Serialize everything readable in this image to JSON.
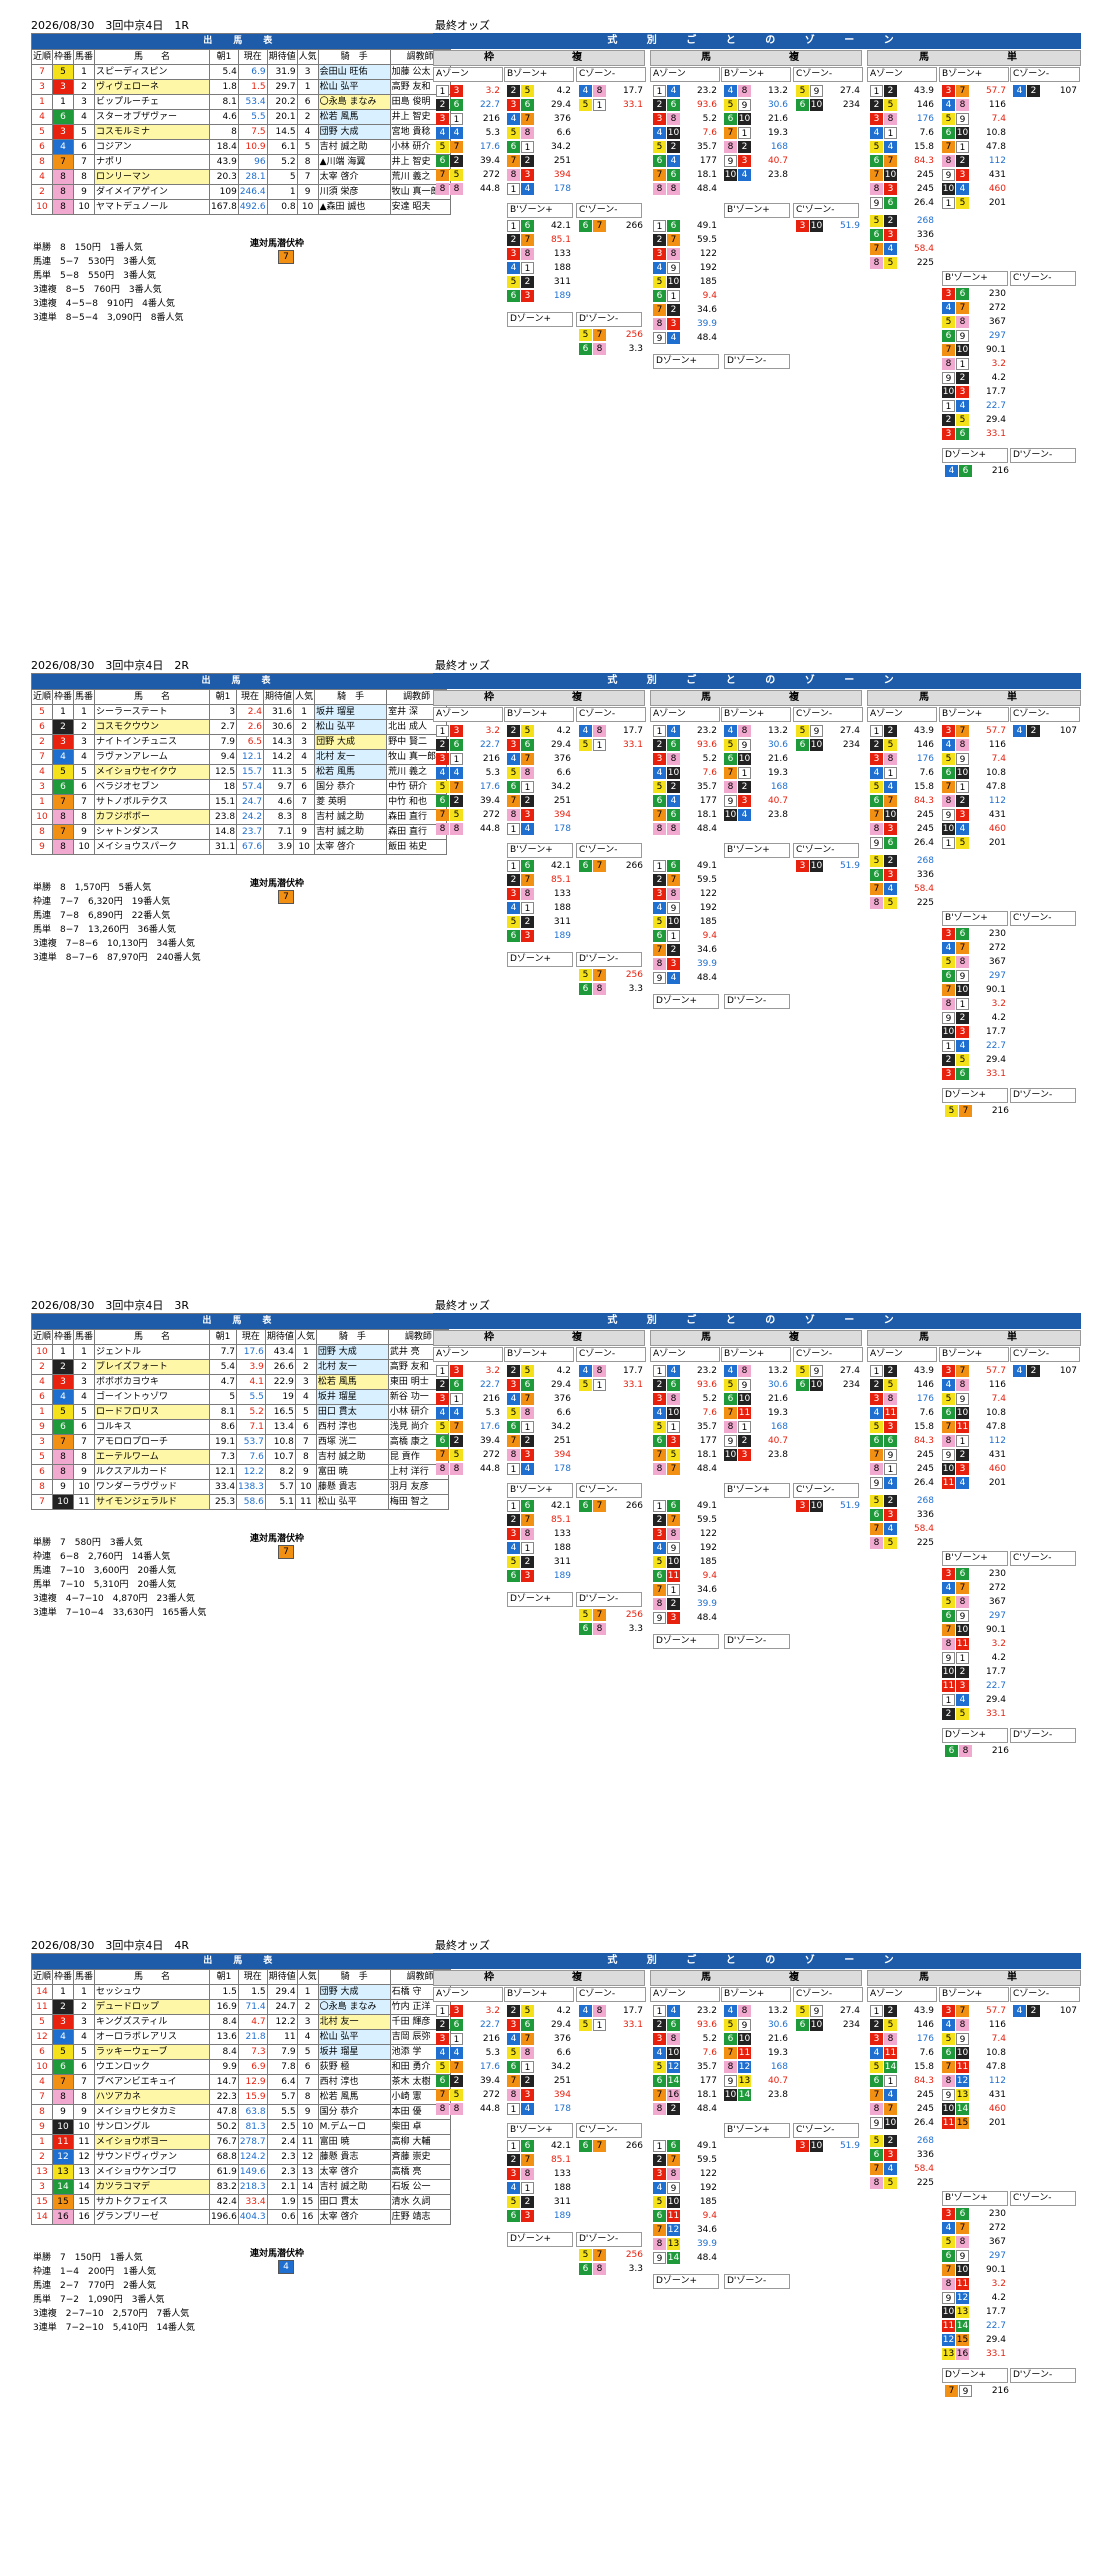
{
  "title_suffix_odds": "最終オッズ",
  "table_title": "出　馬　表",
  "zone_title": "式 別 ご と の ゾ ー ン",
  "groups": {
    "waku": "枠　　　複",
    "umaren": "馬　　　複",
    "tan": "馬　　　単"
  },
  "zones": {
    "a": "Aゾーン",
    "b": "Bゾーン+",
    "c": "Cゾーン-",
    "b_only": "B'ゾーン+",
    "c_only": "C'ゾーン-",
    "d": "Dゾーン+",
    "dm": "D'ゾーン-"
  },
  "cols": {
    "waku": "枠番",
    "uma": "馬番",
    "name": "馬　　名",
    "odds": "単勝オッズ",
    "asa": "朝1",
    "now": "現在",
    "kitai": "期待値",
    "ninki": "人気",
    "jockey": "騎　手",
    "trainer": "調教師",
    "kinjun": "近順"
  },
  "pick_label": "連対馬潜伏枠",
  "races": [
    {
      "header": "2026/08/30　3回中京4日　1R",
      "entries": [
        {
          "k": "7",
          "w": "5",
          "u": "1",
          "n": "スピーディスピン",
          "a": "5.4",
          "c": "6.9",
          "x": "31.9",
          "p": "3",
          "j": "会田山 旺佑",
          "t": "加藤 公太"
        },
        {
          "k": "3",
          "w": "3",
          "u": "2",
          "n": "ヴィヴェローネ",
          "a": "1.8",
          "c": "1.5",
          "x": "29.7",
          "p": "1",
          "j": "松山 弘平",
          "t": "高野 友和"
        },
        {
          "k": "1",
          "w": "1",
          "u": "3",
          "n": "ビップルーチェ",
          "a": "8.1",
          "c": "53.4",
          "x": "20.2",
          "p": "6",
          "j": "〇永島 まなみ",
          "t": "田島 俊明"
        },
        {
          "k": "4",
          "w": "6",
          "u": "4",
          "n": "スターオブザヴァー",
          "a": "4.6",
          "c": "5.5",
          "x": "20.1",
          "p": "2",
          "j": "松若 風馬",
          "t": "井上 智史"
        },
        {
          "k": "5",
          "w": "3",
          "u": "5",
          "n": "コスモルミナ",
          "a": "8",
          "c": "7.5",
          "x": "14.5",
          "p": "4",
          "j": "団野 大成",
          "t": "宮地 貴稔"
        },
        {
          "k": "6",
          "w": "4",
          "u": "6",
          "n": "コジアン",
          "a": "18.4",
          "c": "10.9",
          "x": "6.1",
          "p": "5",
          "j": "吉村 誠之助",
          "t": "小林 研介"
        },
        {
          "k": "8",
          "w": "7",
          "u": "7",
          "n": "ナポリ",
          "a": "43.9",
          "c": "96",
          "x": "5.2",
          "p": "8",
          "j": "▲川端 海翼",
          "t": "井上 智史"
        },
        {
          "k": "4",
          "w": "8",
          "u": "8",
          "n": "ロンリーマン",
          "a": "20.3",
          "c": "28.1",
          "x": "5",
          "p": "7",
          "j": "太宰 啓介",
          "t": "荒川 義之"
        },
        {
          "k": "2",
          "w": "8",
          "u": "9",
          "n": "ダイメイアゲイン",
          "a": "109",
          "c": "246.4",
          "x": "1",
          "p": "9",
          "j": "川須 栄彦",
          "t": "牧山 真一郎"
        },
        {
          "k": "10",
          "w": "8",
          "u": "10",
          "n": "ヤマトデュノール",
          "a": "167.8",
          "c": "492.6",
          "x": "0.8",
          "p": "10",
          "j": "▲森田 誠也",
          "t": "安達 昭夫"
        }
      ],
      "results": [
        "単勝　8　150円　1番人気",
        "馬連　5−7　530円　3番人気",
        "馬単　5−8　550円　3番人気",
        "3連複　8−5　760円　3番人気",
        "3連複　4−5−8　910円　4番人気",
        "3連単　8−5−4　3,090円　8番人気"
      ],
      "pick": "7"
    },
    {
      "header": "2026/08/30　3回中京4日　2R",
      "entries": [
        {
          "k": "5",
          "w": "1",
          "u": "1",
          "n": "シーラーステート",
          "a": "3",
          "c": "2.4",
          "x": "31.6",
          "p": "1",
          "j": "坂井 瑠星",
          "t": "室井 深"
        },
        {
          "k": "6",
          "w": "2",
          "u": "2",
          "n": "コスモクウウン",
          "a": "2.7",
          "c": "2.6",
          "x": "30.6",
          "p": "2",
          "j": "松山 弘平",
          "t": "北出 成人"
        },
        {
          "k": "2",
          "w": "3",
          "u": "3",
          "n": "ナイトインチュニス",
          "a": "7.9",
          "c": "6.5",
          "x": "14.3",
          "p": "3",
          "j": "団野 大成",
          "t": "野中 賢二"
        },
        {
          "k": "7",
          "w": "4",
          "u": "4",
          "n": "ラヴァンアレーム",
          "a": "9.4",
          "c": "12.1",
          "x": "14.2",
          "p": "4",
          "j": "北村 友一",
          "t": "牧山 真一郎"
        },
        {
          "k": "4",
          "w": "5",
          "u": "5",
          "n": "メイショウセイクウ",
          "a": "12.5",
          "c": "15.7",
          "x": "11.3",
          "p": "5",
          "j": "松若 風馬",
          "t": "荒川 義之"
        },
        {
          "k": "3",
          "w": "6",
          "u": "6",
          "n": "ベラジオセブン",
          "a": "18",
          "c": "57.4",
          "x": "9.7",
          "p": "6",
          "j": "国分 恭介",
          "t": "中竹 研介"
        },
        {
          "k": "1",
          "w": "7",
          "u": "7",
          "n": "サトノボルテクス",
          "a": "15.1",
          "c": "24.7",
          "x": "4.6",
          "p": "7",
          "j": "菱 英明",
          "t": "中竹 和也"
        },
        {
          "k": "10",
          "w": "8",
          "u": "8",
          "n": "カフジボボー",
          "a": "23.8",
          "c": "24.2",
          "x": "8.3",
          "p": "8",
          "j": "吉村 誠之助",
          "t": "森田 直行"
        },
        {
          "k": "8",
          "w": "7",
          "u": "9",
          "n": "シャトンダンス",
          "a": "14.8",
          "c": "23.7",
          "x": "7.1",
          "p": "9",
          "j": "吉村 誠之助",
          "t": "森田 直行"
        },
        {
          "k": "9",
          "w": "8",
          "u": "10",
          "n": "メイショウスパーク",
          "a": "31.1",
          "c": "67.6",
          "x": "3.9",
          "p": "10",
          "j": "太宰 啓介",
          "t": "飯田 祐史"
        }
      ],
      "results": [
        "単勝　8　1,570円　5番人気",
        "枠連　7−7　6,320円　19番人気",
        "馬連　7−8　6,890円　22番人気",
        "馬単　8−7　13,260円　36番人気",
        "3連複　7−8−6　10,130円　34番人気",
        "3連単　8−7−6　87,970円　240番人気"
      ],
      "pick": "7"
    },
    {
      "header": "2026/08/30　3回中京4日　3R",
      "entries": [
        {
          "k": "10",
          "w": "1",
          "u": "1",
          "n": "ジェントル",
          "a": "7.7",
          "c": "17.6",
          "x": "43.4",
          "p": "1",
          "j": "団野 大成",
          "t": "武井 亮"
        },
        {
          "k": "2",
          "w": "2",
          "u": "2",
          "n": "ブレイズフォート",
          "a": "5.4",
          "c": "3.9",
          "x": "26.6",
          "p": "2",
          "j": "北村 友一",
          "t": "高野 友和"
        },
        {
          "k": "4",
          "w": "3",
          "u": "3",
          "n": "ボボボカヨウキ",
          "a": "4.7",
          "c": "4.1",
          "x": "22.9",
          "p": "3",
          "j": "松若 風馬",
          "t": "東田 明士"
        },
        {
          "k": "6",
          "w": "4",
          "u": "4",
          "n": "ゴーイントゥゾワ",
          "a": "5",
          "c": "5.5",
          "x": "19",
          "p": "4",
          "j": "坂井 瑠星",
          "t": "新谷 功一"
        },
        {
          "k": "1",
          "w": "5",
          "u": "5",
          "n": "ロードフロリス",
          "a": "8.1",
          "c": "5.2",
          "x": "16.5",
          "p": "5",
          "j": "田口 貫太",
          "t": "小林 研介"
        },
        {
          "k": "9",
          "w": "6",
          "u": "6",
          "n": "コルキス",
          "a": "8.6",
          "c": "7.1",
          "x": "13.4",
          "p": "6",
          "j": "西村 淳也",
          "t": "浅見 尚介"
        },
        {
          "k": "3",
          "w": "7",
          "u": "7",
          "n": "アモロロプローチ",
          "a": "19.1",
          "c": "53.7",
          "x": "10.8",
          "p": "7",
          "j": "西塚 洸二",
          "t": "高橋 康之"
        },
        {
          "k": "5",
          "w": "8",
          "u": "8",
          "n": "エーテルワーム",
          "a": "7.3",
          "c": "7.6",
          "x": "10.7",
          "p": "8",
          "j": "吉村 誠之助",
          "t": "昆 貢作"
        },
        {
          "k": "6",
          "w": "8",
          "u": "9",
          "n": "ルクスアルカード",
          "a": "12.1",
          "c": "12.2",
          "x": "8.2",
          "p": "9",
          "j": "富田 暁",
          "t": "上村 洋行"
        },
        {
          "k": "8",
          "w": "9",
          "u": "10",
          "n": "ワンダーラヴヴッド",
          "a": "33.4",
          "c": "138.3",
          "x": "5.7",
          "p": "10",
          "j": "藤懸 貴志",
          "t": "羽月 友彦"
        },
        {
          "k": "7",
          "w": "10",
          "u": "11",
          "n": "サイモンジェラルド",
          "a": "25.3",
          "c": "58.6",
          "x": "5.1",
          "p": "11",
          "j": "松山 弘平",
          "t": "梅田 智之"
        }
      ],
      "results": [
        "単勝　7　580円　3番人気",
        "枠連　6−8　2,760円　14番人気",
        "馬連　7−10　3,600円　20番人気",
        "馬単　7−10　5,310円　20番人気",
        "3連複　4−7−10　4,870円　23番人気",
        "3連単　7−10−4　33,630円　165番人気"
      ],
      "pick": "7"
    },
    {
      "header": "2026/08/30　3回中京4日　4R",
      "entries": [
        {
          "k": "14",
          "w": "1",
          "u": "1",
          "n": "セッシュウ",
          "a": "1.5",
          "c": "1.5",
          "x": "29.4",
          "p": "1",
          "j": "団野 大成",
          "t": "石橋 守"
        },
        {
          "k": "11",
          "w": "2",
          "u": "2",
          "n": "デュードロップ",
          "a": "16.9",
          "c": "71.4",
          "x": "24.7",
          "p": "2",
          "j": "〇永島 まなみ",
          "t": "竹内 正洋"
        },
        {
          "k": "5",
          "w": "3",
          "u": "3",
          "n": "キングズスティル",
          "a": "8.4",
          "c": "4.7",
          "x": "12.2",
          "p": "3",
          "j": "北村 友一",
          "t": "千田 輝彦"
        },
        {
          "k": "12",
          "w": "4",
          "u": "4",
          "n": "オーロラボレアリス",
          "a": "13.6",
          "c": "21.8",
          "x": "11",
          "p": "4",
          "j": "松山 弘平",
          "t": "吉岡 辰弥"
        },
        {
          "k": "6",
          "w": "5",
          "u": "5",
          "n": "ラッキーウェーブ",
          "a": "8.4",
          "c": "7.3",
          "x": "7.9",
          "p": "5",
          "j": "坂井 瑠星",
          "t": "池添 学"
        },
        {
          "k": "10",
          "w": "6",
          "u": "6",
          "n": "ウエンロック",
          "a": "9.9",
          "c": "6.9",
          "x": "7.8",
          "p": "6",
          "j": "荻野 極",
          "t": "和田 勇介"
        },
        {
          "k": "4",
          "w": "7",
          "u": "7",
          "n": "ブベアンビエキュイ",
          "a": "14.7",
          "c": "12.9",
          "x": "6.4",
          "p": "7",
          "j": "西村 淳也",
          "t": "茶木 太樹"
        },
        {
          "k": "7",
          "w": "8",
          "u": "8",
          "n": "ハツアカネ",
          "a": "22.3",
          "c": "15.9",
          "x": "5.7",
          "p": "8",
          "j": "松若 風馬",
          "t": "小崎 憲"
        },
        {
          "k": "8",
          "w": "9",
          "u": "9",
          "n": "メイショウヒタカミ",
          "a": "47.8",
          "c": "63.8",
          "x": "5.5",
          "p": "9",
          "j": "国分 恭介",
          "t": "本田 優"
        },
        {
          "k": "9",
          "w": "10",
          "u": "10",
          "n": "サンロングル",
          "a": "50.2",
          "c": "81.3",
          "x": "2.5",
          "p": "10",
          "j": "M.デムーロ",
          "t": "柴田 卓"
        },
        {
          "k": "1",
          "w": "11",
          "u": "11",
          "n": "メイショウボヨー",
          "a": "76.7",
          "c": "278.7",
          "x": "2.4",
          "p": "11",
          "j": "富田 暁",
          "t": "高柳 大輔"
        },
        {
          "k": "2",
          "w": "12",
          "u": "12",
          "n": "サウンドヴィヴァン",
          "a": "68.8",
          "c": "124.2",
          "x": "2.3",
          "p": "12",
          "j": "藤懸 貴志",
          "t": "斉藤 崇史"
        },
        {
          "k": "13",
          "w": "13",
          "u": "13",
          "n": "メイショウケンゴワ",
          "a": "61.9",
          "c": "149.6",
          "x": "2.3",
          "p": "13",
          "j": "太宰 啓介",
          "t": "高橋 亮"
        },
        {
          "k": "3",
          "w": "14",
          "u": "14",
          "n": "カツラコマデ",
          "a": "83.2",
          "c": "218.3",
          "x": "2.1",
          "p": "14",
          "j": "吉村 誠之助",
          "t": "石坂 公一"
        },
        {
          "k": "15",
          "w": "15",
          "u": "15",
          "n": "サカトクフェイス",
          "a": "42.4",
          "c": "33.4",
          "x": "1.9",
          "p": "15",
          "j": "田口 貫太",
          "t": "清水 久詞"
        },
        {
          "k": "14",
          "w": "16",
          "u": "16",
          "n": "グランプリーゼ",
          "a": "196.6",
          "c": "404.3",
          "x": "0.6",
          "p": "16",
          "j": "太宰 啓介",
          "t": "庄野 靖志"
        }
      ],
      "results": [
        "単勝　7　150円　1番人気",
        "枠連　1−4　200円　1番人気",
        "馬連　2−7　770円　2番人気",
        "馬単　7−2　1,090円　3番人気",
        "3連複　2−7−10　2,570円　7番人気",
        "3連単　7−2−10　5,410円　14番人気"
      ],
      "pick": "4"
    }
  ],
  "zone_rows": [
    {
      "wa": [
        [
          "3",
          "8",
          "3.2"
        ],
        [
          "3",
          "5",
          "4.2"
        ],
        [
          "1",
          "3",
          "17.7"
        ],
        [
          "5",
          "5",
          "22.7"
        ],
        [
          "1",
          "3",
          "29.4"
        ],
        [
          "5",
          "6",
          "33.1"
        ],
        [
          "1",
          "5",
          "216"
        ],
        [
          "2",
          "5",
          "376"
        ]
      ],
      "wb": [
        [
          "5",
          "7",
          "5.3"
        ],
        [
          "1",
          "7",
          "6.6"
        ],
        [
          "3",
          "7",
          "17.6"
        ],
        [
          "1",
          "5",
          "34.2"
        ],
        [
          "1",
          "2",
          "39.4"
        ],
        [
          "1",
          "4",
          "251"
        ],
        [
          "2",
          "7",
          "272"
        ],
        [
          "1",
          "2",
          "394"
        ]
      ],
      "wc": [
        [
          "4",
          "8",
          "44.8"
        ],
        [
          "5",
          "7",
          "178"
        ]
      ],
      "ua": [
        [
          "5",
          "8",
          "3.3"
        ],
        [
          "2",
          "3",
          "23.2"
        ],
        [
          "3",
          "4",
          "13.2"
        ],
        [
          "2",
          "7",
          "27.4"
        ],
        [
          "4",
          "5",
          "93.6"
        ],
        [
          "3",
          "6",
          "30.6"
        ],
        [
          "3",
          "6",
          "1"
        ],
        [
          "1",
          "2",
          "234"
        ]
      ],
      "ub": [
        [
          "4",
          "8",
          "5.2"
        ],
        [
          "4",
          "8",
          "21.6"
        ],
        [
          "5",
          "8",
          "7.6"
        ],
        [
          "3",
          "8",
          "19.3"
        ],
        [
          "1",
          "5",
          "35.7"
        ],
        [
          "5",
          "8",
          "168"
        ],
        [
          "1",
          "6",
          "177"
        ]
      ],
      "uc": [
        [
          "4",
          "8",
          "40.7"
        ],
        [
          "3",
          "8",
          "5.5"
        ]
      ],
      "ta": [
        [
          "5",
          "8",
          "9.4"
        ],
        [
          "5",
          "8",
          "34.6"
        ],
        [
          "8",
          "1",
          "39.9"
        ],
        [
          "5",
          "1",
          "48.4"
        ],
        [
          "5",
          "4",
          "43.9"
        ],
        [
          "6",
          "1",
          "57.7"
        ],
        [
          "4",
          "6",
          "57.7"
        ],
        [
          "1",
          "5",
          "107"
        ]
      ],
      "tb": [
        [
          "8",
          "7",
          "7.4"
        ],
        [
          "5",
          "8",
          "7.6"
        ],
        [
          "8",
          "4",
          "10.8"
        ],
        [
          "8",
          "3",
          "13"
        ],
        [
          "8",
          "5",
          "15.8"
        ],
        [
          "8",
          "5",
          "47.8"
        ],
        [
          "8",
          "3",
          "84.3"
        ],
        [
          "1",
          "4",
          "112"
        ]
      ],
      "tc": [
        [
          "4",
          "2",
          "26.4"
        ]
      ]
    }
  ],
  "zone_values_r1": [
    "3.2",
    "4.2",
    "17.7",
    "22.7",
    "29.4",
    "33.1",
    "216",
    "376",
    "5.3",
    "6.6",
    "17.6",
    "34.2",
    "39.4",
    "251",
    "272",
    "394",
    "44.8",
    "178",
    "42.1",
    "266",
    "85.1",
    "133",
    "188",
    "311",
    "189",
    "256",
    "3.3",
    "23.2",
    "13.2",
    "27.4",
    "93.6",
    "30.6",
    "234",
    "5.2",
    "21.6",
    "7.6",
    "19.3",
    "35.7",
    "168",
    "177",
    "40.7",
    "18.1",
    "23.8",
    "48.4",
    "49.1",
    "51.9",
    "59.5",
    "122",
    "192",
    "185",
    "9.4",
    "34.6",
    "39.9",
    "48.4",
    "43.9",
    "57.7",
    "107",
    "146",
    "116",
    "176",
    "7.4",
    "7.6",
    "10.8",
    "15.8",
    "47.8",
    "84.3",
    "112",
    "245",
    "431",
    "245",
    "460",
    "26.4",
    "201",
    "268",
    "336",
    "58.4",
    "225",
    "230",
    "272",
    "367",
    "297",
    "90.1"
  ]
}
